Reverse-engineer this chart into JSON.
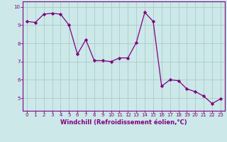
{
  "x": [
    0,
    1,
    2,
    3,
    4,
    5,
    6,
    7,
    8,
    9,
    10,
    11,
    12,
    13,
    14,
    15,
    16,
    17,
    18,
    19,
    20,
    21,
    22,
    23
  ],
  "y": [
    9.2,
    9.15,
    9.6,
    9.65,
    9.6,
    9.0,
    7.4,
    8.2,
    7.05,
    7.05,
    7.0,
    7.2,
    7.2,
    8.05,
    9.7,
    9.2,
    5.65,
    6.0,
    5.95,
    5.5,
    5.35,
    5.1,
    4.7,
    4.95
  ],
  "line_color": "#800080",
  "marker": "D",
  "marker_size": 2.2,
  "bg_color": "#cce8e8",
  "grid_color": "#aacccc",
  "xlabel": "Windchill (Refroidissement éolien,°C)",
  "xlabel_color": "#800080",
  "tick_color": "#800080",
  "xlim": [
    -0.5,
    23.5
  ],
  "ylim": [
    4.3,
    10.3
  ],
  "yticks": [
    5,
    6,
    7,
    8,
    9,
    10
  ],
  "xticks": [
    0,
    1,
    2,
    3,
    4,
    5,
    6,
    7,
    8,
    9,
    10,
    11,
    12,
    13,
    14,
    15,
    16,
    17,
    18,
    19,
    20,
    21,
    22,
    23
  ],
  "tick_fontsize": 5.0,
  "xlabel_fontsize": 6.0
}
